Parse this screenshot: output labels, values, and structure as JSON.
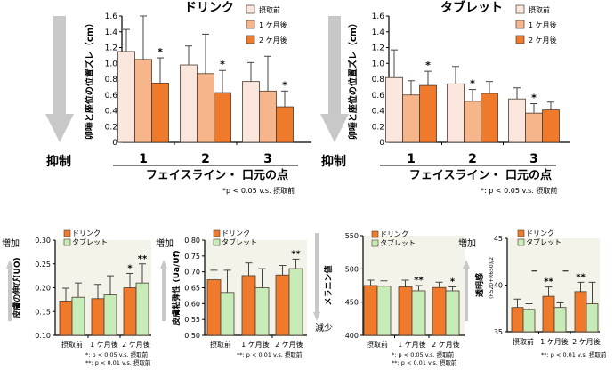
{
  "colors": {
    "pre": "#fbe6de",
    "m1": "#f7b58c",
    "m2": "#f07a2c",
    "drink": "#f07a2c",
    "tablet": "#c8ecb8",
    "gray_arrow": "#c8c8c8",
    "bar_stroke": "#4a3a30",
    "panel_bg": "#f4f3ea"
  },
  "labels": {
    "suppress": "抑制",
    "increase": "増加",
    "decrease": "減少"
  },
  "chart_data": [
    {
      "id": "top_drink",
      "type": "bar",
      "title": "ドリンク",
      "ylabel": "卯唾と座位の位置ズレ（cm）",
      "ylim": [
        0,
        1.6
      ],
      "yticks": [
        "0",
        "0.2",
        "0.4",
        "0.6",
        "0.8",
        "1.0",
        "1.2",
        "1.4",
        "1.6"
      ],
      "categories": [
        "1",
        "2",
        "3"
      ],
      "xlabel": "フェイスライン・ 口元の点",
      "legend": [
        "摂取前",
        "1 ケ月後",
        "2 ケ月後"
      ],
      "series": [
        {
          "name": "摂取前",
          "values": [
            1.15,
            0.98,
            0.77
          ],
          "errors": [
            0.28,
            0.24,
            0.24
          ],
          "stars": [
            "",
            "",
            ""
          ]
        },
        {
          "name": "1 ケ月後",
          "values": [
            1.05,
            0.87,
            0.65
          ],
          "errors": [
            0.55,
            0.5,
            0.44
          ],
          "stars": [
            "",
            "",
            ""
          ]
        },
        {
          "name": "2 ケ月後",
          "values": [
            0.75,
            0.63,
            0.45
          ],
          "errors": [
            0.32,
            0.28,
            0.2
          ],
          "stars": [
            "*",
            "*",
            "*"
          ]
        }
      ],
      "footnote": "*p < 0.05 v.s. 摂取前"
    },
    {
      "id": "top_tablet",
      "type": "bar",
      "title": "タブレット",
      "ylabel": "卯唾と座位の位置ズレ（cm）",
      "ylim": [
        0,
        1.6
      ],
      "yticks": [
        "0",
        "0.2",
        "0.4",
        "0.6",
        "0.8",
        "1.0",
        "1.2",
        "1.4",
        "1.6"
      ],
      "categories": [
        "1",
        "2",
        "3"
      ],
      "xlabel": "フェイスライン・ 口元の点",
      "legend": [
        "摂取前",
        "1 ケ月後",
        "2 ケ月後"
      ],
      "series": [
        {
          "name": "摂取前",
          "values": [
            0.82,
            0.74,
            0.55
          ],
          "errors": [
            0.35,
            0.22,
            0.14
          ],
          "stars": [
            "",
            "",
            ""
          ]
        },
        {
          "name": "1 ケ月後",
          "values": [
            0.6,
            0.52,
            0.37
          ],
          "errors": [
            0.18,
            0.15,
            0.12
          ],
          "stars": [
            "",
            "*",
            "*"
          ]
        },
        {
          "name": "2 ケ月後",
          "values": [
            0.72,
            0.62,
            0.41
          ],
          "errors": [
            0.18,
            0.15,
            0.1
          ],
          "stars": [
            "*",
            "",
            ""
          ]
        }
      ],
      "footnote": "*: p < 0.05 v.s. 摂取前"
    },
    {
      "id": "elastic",
      "type": "bar",
      "ylabel": "皮膚の伸び(UO)",
      "ylim": [
        0.1,
        0.3
      ],
      "yticks": [
        "0.10",
        "0.15",
        "0.20",
        "0.25",
        "0.30"
      ],
      "categories": [
        "摂取前",
        "1 ケ月後",
        "2 ケ月後"
      ],
      "legend": [
        "ドリンク",
        "タブレット"
      ],
      "series": [
        {
          "name": "ドリンク",
          "values": [
            0.172,
            0.177,
            0.2
          ],
          "errors": [
            0.027,
            0.03,
            0.03
          ],
          "stars": [
            "",
            "",
            "*"
          ]
        },
        {
          "name": "タブレット",
          "values": [
            0.18,
            0.185,
            0.21
          ],
          "errors": [
            0.03,
            0.04,
            0.04
          ],
          "stars": [
            "",
            "",
            "**"
          ]
        }
      ],
      "footnotes": [
        "*:  p < 0.05 v.s. 摂取前",
        "**:  p < 0.01 v.s. 摂取前"
      ]
    },
    {
      "id": "viscoelastic",
      "type": "bar",
      "ylabel": "皮膚粘弾性 (Ua/Uf)",
      "ylim": [
        0.5,
        0.8
      ],
      "yticks": [
        "0.50",
        "0.55",
        "0.60",
        "0.65",
        "0.70",
        "0.75",
        "0.80"
      ],
      "categories": [
        "摂取前",
        "1 ケ月後",
        "2 ケ月後"
      ],
      "legend": [
        "ドリンク",
        "タブレット"
      ],
      "series": [
        {
          "name": "ドリンク",
          "values": [
            0.675,
            0.688,
            0.69
          ],
          "errors": [
            0.03,
            0.04,
            0.03
          ],
          "stars": [
            "",
            "",
            ""
          ]
        },
        {
          "name": "タブレット",
          "values": [
            0.635,
            0.65,
            0.71
          ],
          "errors": [
            0.07,
            0.06,
            0.03
          ],
          "stars": [
            "",
            "",
            "**"
          ]
        }
      ],
      "footnotes": [
        "**:  p < 0.01 v.s. 摂取前"
      ]
    },
    {
      "id": "melanin",
      "type": "bar",
      "ylabel": "メラニン値",
      "ylim": [
        400,
        550
      ],
      "yticks": [
        "400",
        "450",
        "500",
        "550"
      ],
      "categories": [
        "摂取前",
        "1 ケ月後",
        "2 ケ月後"
      ],
      "legend": [
        "ドリンク",
        "タブレット"
      ],
      "series": [
        {
          "name": "ドリンク",
          "values": [
            475,
            473,
            472
          ],
          "errors": [
            8,
            10,
            8
          ],
          "stars": [
            "",
            "",
            ""
          ]
        },
        {
          "name": "タブレット",
          "values": [
            474,
            467,
            467
          ],
          "errors": [
            8,
            8,
            6
          ],
          "stars": [
            "",
            "**",
            "*"
          ]
        }
      ],
      "footnotes": [
        "*:  p < 0.05 v.s. 摂取前",
        "**:  p < 0.01 v.s. 摂取前"
      ]
    },
    {
      "id": "transparency",
      "type": "bar",
      "ylabel": "透明感",
      "ylabel_sub": "(R520+R650)/2",
      "ylim": [
        35,
        45
      ],
      "yticks": [
        "35",
        "40",
        "45"
      ],
      "categories": [
        "摂取前",
        "1 ケ月後",
        "2 ケ月後"
      ],
      "legend": [
        "ドリンク",
        "タブレット"
      ],
      "series": [
        {
          "name": "ドリンク",
          "values": [
            37.6,
            38.8,
            39.3
          ],
          "errors": [
            0.9,
            1.0,
            1.0
          ],
          "stars": [
            "",
            "**",
            "**"
          ]
        },
        {
          "name": "タブレット",
          "values": [
            37.4,
            37.6,
            38.0
          ],
          "errors": [
            0.6,
            0.5,
            2.3
          ],
          "stars": [
            "",
            "",
            ""
          ]
        }
      ],
      "dashes": [
        0,
        1
      ],
      "footnotes": [
        "**:  p < 0.01 v.s. 摂取前"
      ]
    }
  ]
}
